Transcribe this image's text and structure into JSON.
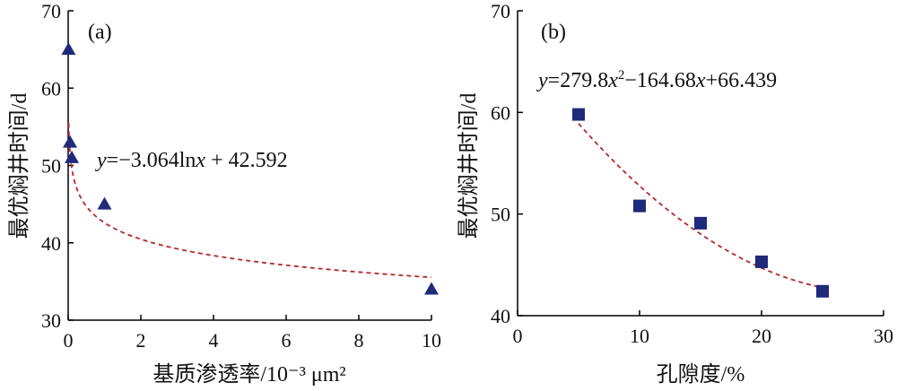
{
  "chart_data": [
    {
      "panel_label": "(a)",
      "type": "scatter",
      "xlabel": "基质渗透率/10⁻³ μm²",
      "ylabel": "最优焖井时间/d",
      "xlim": [
        0,
        10
      ],
      "ylim": [
        30,
        70
      ],
      "xticks": [
        "0",
        "2",
        "4",
        "6",
        "8",
        "10"
      ],
      "yticks": [
        "30",
        "40",
        "50",
        "60",
        "70"
      ],
      "marker": "triangle",
      "marker_color": "#1f2a7a",
      "fit_color": "#b5262b",
      "points": [
        {
          "x": 0.01,
          "y": 65
        },
        {
          "x": 0.05,
          "y": 53
        },
        {
          "x": 0.1,
          "y": 51
        },
        {
          "x": 1,
          "y": 45
        },
        {
          "x": 10,
          "y": 34
        }
      ],
      "fit": {
        "kind": "logarithmic",
        "a": -3.064,
        "b": 42.592,
        "x_from": 0.015,
        "x_to": 10
      },
      "equation": {
        "y": "y",
        "eq": "=−3.064ln",
        "x": "x",
        "rest": " + 42.592"
      }
    },
    {
      "panel_label": "(b)",
      "type": "scatter",
      "xlabel": "孔隙度/%",
      "ylabel": "最优焖井时间/d",
      "xlim": [
        0,
        30
      ],
      "ylim": [
        40,
        70
      ],
      "xticks": [
        "0",
        "10",
        "20",
        "30"
      ],
      "yticks": [
        "40",
        "50",
        "60",
        "70"
      ],
      "marker": "square",
      "marker_color": "#1f2a7a",
      "fit_color": "#b5262b",
      "points": [
        {
          "x": 5,
          "y": 59.8
        },
        {
          "x": 10,
          "y": 50.8
        },
        {
          "x": 15,
          "y": 49.1
        },
        {
          "x": 20,
          "y": 45.3
        },
        {
          "x": 25,
          "y": 42.4
        }
      ],
      "fit": {
        "kind": "quadratic",
        "a": 279.8,
        "b": -164.68,
        "c": 66.439,
        "x_from": 5,
        "x_to": 25
      },
      "equation": {
        "y": "y",
        "p1": "=279.8",
        "x1": "x",
        "sup": "2",
        "p2": "−164.68",
        "x2": "x",
        "p3": "+66.439"
      }
    }
  ]
}
